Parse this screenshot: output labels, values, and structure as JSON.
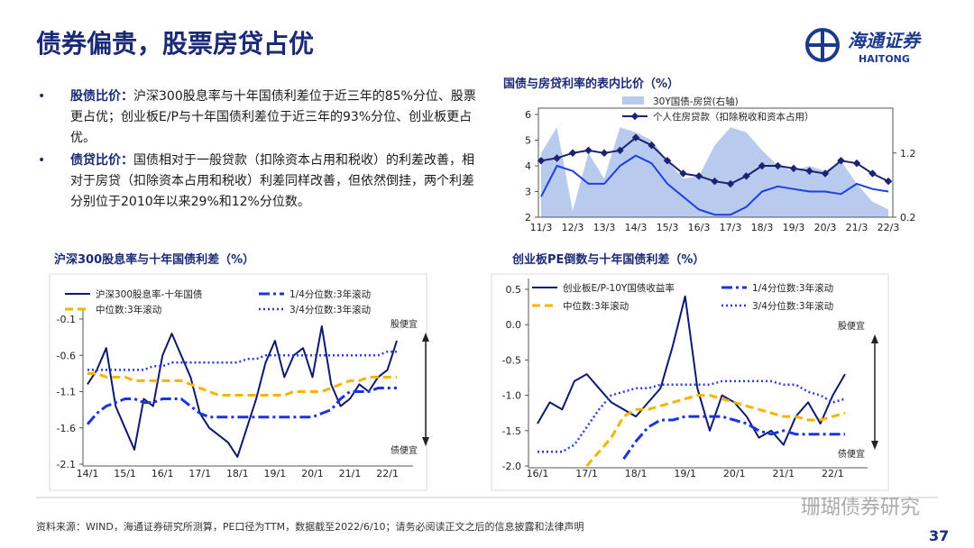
{
  "header": {
    "title": "债券偏贵，股票房贷占优",
    "logo_cn": "海通证券",
    "logo_en": "HAITONG"
  },
  "bullets": [
    {
      "label": "股债比价：",
      "text": "沪深300股息率与十年国债利差位于近三年的85%分位、股票更占优；创业板E/P与十年国债利差位于近三年的93%分位、创业板更占优。"
    },
    {
      "label": "债贷比价：",
      "text": "国债相对于一般贷款（扣除资本占用和税收）的利差改善，相对于房贷（扣除资本占用和税收）利差同样改善，但依然倒挂，两个利差分别位于2010年以来29%和12%分位数。"
    }
  ],
  "chart_data": [
    {
      "type": "line",
      "title": "国债与房贷利率的表内比价（%）",
      "categories": [
        "11/3",
        null,
        "12/3",
        null,
        "13/3",
        null,
        "14/3",
        null,
        "15/3",
        null,
        "16/3",
        null,
        "17/3",
        null,
        "18/3",
        null,
        "19/3",
        null,
        "20/3",
        null,
        "21/3",
        null,
        "22/3"
      ],
      "ylim": [
        2,
        6
      ],
      "yticks": [
        2,
        3,
        4,
        5,
        6
      ],
      "y2lim": [
        0.2,
        1.8
      ],
      "y2ticks": [
        0.2,
        1.2
      ],
      "series": [
        {
          "name": "30Y国债-房贷(右轴)",
          "color": "#b8caee",
          "style": "area",
          "axis": "y2",
          "values": [
            1.2,
            1.6,
            0.3,
            1.2,
            0.8,
            1.6,
            1.52,
            1.4,
            1.08,
            0.8,
            0.84,
            1.32,
            1.6,
            1.52,
            1.24,
            1.0,
            0.92,
            1.0,
            0.92,
            1.08,
            0.72,
            0.44,
            0.32
          ]
        },
        {
          "name": "个人住房贷款（扣除税收和资本占用）",
          "color": "#1b2470",
          "style": "solid",
          "marker": "diamond",
          "values": [
            4.2,
            4.3,
            4.5,
            4.6,
            4.5,
            4.6,
            5.1,
            4.8,
            4.2,
            3.7,
            3.6,
            3.4,
            3.3,
            3.6,
            4.0,
            4.0,
            3.9,
            3.8,
            3.7,
            4.2,
            4.1,
            3.7,
            3.4
          ]
        },
        {
          "color": "#1f3fe0",
          "style": "solid",
          "values": [
            2.8,
            4.0,
            3.8,
            3.3,
            3.3,
            4.0,
            4.4,
            4.1,
            3.3,
            2.8,
            2.3,
            2.1,
            2.1,
            2.4,
            3.0,
            3.2,
            3.1,
            3.0,
            3.0,
            2.9,
            3.3,
            3.1,
            3.0
          ]
        }
      ]
    },
    {
      "type": "line",
      "title": "沪深300股息率与十年国债利差（%）",
      "categories": [
        "14/1",
        null,
        null,
        null,
        "15/1",
        null,
        null,
        null,
        "16/1",
        null,
        null,
        null,
        "17/1",
        null,
        null,
        null,
        "18/1",
        null,
        null,
        null,
        "19/1",
        null,
        null,
        null,
        "20/1",
        null,
        null,
        null,
        "21/1",
        null,
        null,
        null,
        "22/1",
        null
      ],
      "ylim": [
        -2.1,
        -0.1
      ],
      "yticks": [
        -0.1,
        -0.6,
        -1.1,
        -1.6,
        -2.1
      ],
      "annotations": [
        "股便宜",
        "债便宜"
      ],
      "series": [
        {
          "name": "沪深300股息率-十年国债",
          "color": "#0e1a6e",
          "style": "solid",
          "values": [
            -1.0,
            -0.8,
            -0.5,
            -1.3,
            -1.6,
            -1.9,
            -1.2,
            -1.3,
            -0.6,
            -0.3,
            -0.6,
            -0.9,
            -1.4,
            -1.6,
            -1.7,
            -1.8,
            -2.0,
            -1.6,
            -1.2,
            -0.7,
            -0.4,
            -0.9,
            -0.6,
            -0.5,
            -0.9,
            -0.2,
            -1.0,
            -1.3,
            -1.2,
            -1.0,
            -1.1,
            -0.9,
            -0.8,
            -0.4
          ]
        },
        {
          "name": "1/4分位数:3年滚动",
          "color": "#1a35e0",
          "style": "dashdot",
          "values": [
            -1.55,
            -1.4,
            -1.3,
            -1.25,
            -1.2,
            -1.2,
            -1.25,
            -1.25,
            -1.2,
            -1.2,
            -1.2,
            -1.3,
            -1.4,
            -1.45,
            -1.45,
            -1.45,
            -1.45,
            -1.45,
            -1.45,
            -1.45,
            -1.45,
            -1.45,
            -1.45,
            -1.45,
            -1.45,
            -1.4,
            -1.35,
            -1.2,
            -1.1,
            -1.1,
            -1.1,
            -1.05,
            -1.05,
            -1.05
          ]
        },
        {
          "name": "中位数:3年滚动",
          "color": "#f5b400",
          "style": "dashed",
          "values": [
            -0.85,
            -0.85,
            -0.9,
            -0.9,
            -0.9,
            -0.95,
            -0.95,
            -0.95,
            -0.95,
            -0.95,
            -0.95,
            -1.0,
            -1.05,
            -1.1,
            -1.15,
            -1.15,
            -1.15,
            -1.15,
            -1.15,
            -1.15,
            -1.15,
            -1.15,
            -1.1,
            -1.1,
            -1.1,
            -1.1,
            -1.05,
            -1.0,
            -0.95,
            -0.95,
            -0.9,
            -0.9,
            -0.9,
            -0.9
          ]
        },
        {
          "name": "3/4分位数:3年滚动",
          "color": "#2a3de0",
          "style": "dotted",
          "values": [
            -0.8,
            -0.8,
            -0.8,
            -0.8,
            -0.8,
            -0.8,
            -0.8,
            -0.75,
            -0.75,
            -0.7,
            -0.7,
            -0.7,
            -0.7,
            -0.7,
            -0.7,
            -0.7,
            -0.7,
            -0.65,
            -0.65,
            -0.6,
            -0.6,
            -0.6,
            -0.6,
            -0.6,
            -0.6,
            -0.6,
            -0.6,
            -0.6,
            -0.6,
            -0.6,
            -0.6,
            -0.6,
            -0.55,
            -0.55
          ]
        }
      ]
    },
    {
      "type": "line",
      "title": "创业板PE倒数与十年国债利差（%）",
      "categories": [
        "16/1",
        null,
        null,
        null,
        "17/1",
        null,
        null,
        null,
        "18/1",
        null,
        null,
        null,
        "19/1",
        null,
        null,
        null,
        "20/1",
        null,
        null,
        null,
        "21/1",
        null,
        null,
        null,
        "22/1",
        null
      ],
      "ylim": [
        -2,
        0.5
      ],
      "yticks": [
        0.5,
        {
          "value": 0,
          "label": "0.0"
        },
        -0.5,
        {
          "value": -1,
          "label": "-1.0"
        },
        -1.5,
        {
          "value": -2,
          "label": "-2.0"
        }
      ],
      "annotations": [
        "股便宜",
        "债便宜"
      ],
      "series": [
        {
          "name": "创业板E/P-10Y国债收益率",
          "color": "#0e1a6e",
          "style": "solid",
          "values": [
            -1.4,
            -1.1,
            -1.2,
            -0.8,
            -0.7,
            -0.9,
            -1.1,
            -1.2,
            -1.3,
            -1.1,
            -0.9,
            -0.3,
            0.4,
            -0.9,
            -1.5,
            -1.0,
            -1.1,
            -1.3,
            -1.6,
            -1.5,
            -1.7,
            -1.3,
            -1.1,
            -1.4,
            -1.0,
            -0.7
          ]
        },
        {
          "name": "1/4分位数:3年滚动",
          "color": "#1a35e0",
          "style": "dashdot",
          "values": [
            null,
            null,
            null,
            null,
            null,
            null,
            null,
            -1.9,
            -1.65,
            -1.45,
            -1.35,
            -1.35,
            -1.3,
            -1.3,
            -1.3,
            -1.3,
            -1.35,
            -1.4,
            -1.5,
            -1.55,
            -1.5,
            -1.55,
            -1.55,
            -1.55,
            -1.55,
            -1.55
          ]
        },
        {
          "name": "中位数:3年滚动",
          "color": "#f5b400",
          "style": "dashed",
          "values": [
            null,
            null,
            null,
            null,
            -2.0,
            -1.8,
            -1.6,
            -1.3,
            -1.2,
            -1.2,
            -1.15,
            -1.1,
            -1.05,
            -1.0,
            -1.0,
            -1.05,
            -1.1,
            -1.15,
            -1.2,
            -1.25,
            -1.3,
            -1.3,
            -1.35,
            -1.35,
            -1.3,
            -1.25
          ]
        },
        {
          "name": "3/4分位数:3年滚动",
          "color": "#2a3de0",
          "style": "dotted",
          "values": [
            -1.8,
            -1.8,
            -1.8,
            -1.7,
            -1.45,
            -1.2,
            -1.0,
            -0.95,
            -0.9,
            -0.9,
            -0.85,
            -0.85,
            -0.85,
            -0.85,
            -0.85,
            -0.8,
            -0.8,
            -0.8,
            -0.8,
            -0.8,
            -0.85,
            -0.85,
            -0.95,
            -1.0,
            -1.1,
            -1.05
          ]
        }
      ]
    }
  ],
  "footer": {
    "source": "资料来源：WIND，海通证券研究所测算，PE口径为TTM，数据截至2022/6/10；请务必阅读正文之后的信息披露和法律声明",
    "page": "37",
    "watermark": "珊瑚债券研究"
  }
}
